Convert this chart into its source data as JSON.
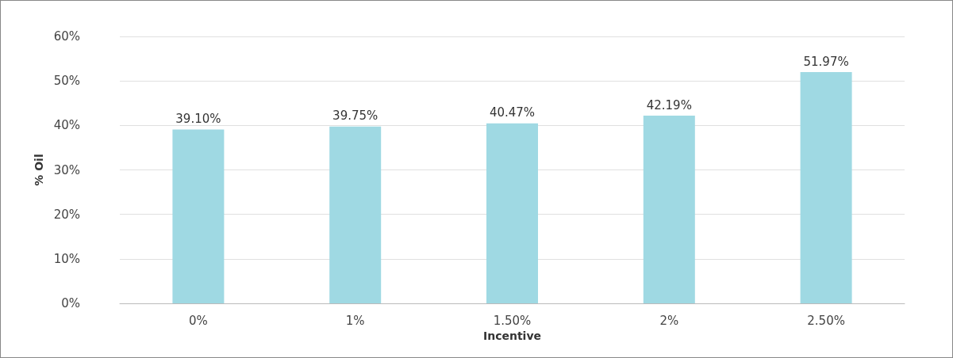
{
  "chart_data": {
    "type": "bar",
    "xlabel": "Incentive",
    "ylabel": "% Oil",
    "categories": [
      "0%",
      "1%",
      "1.50%",
      "2%",
      "2.50%"
    ],
    "values": [
      39.1,
      39.75,
      40.47,
      42.19,
      51.97
    ],
    "value_labels": [
      "39.10%",
      "39.75%",
      "40.47%",
      "42.19%",
      "51.97%"
    ],
    "color": "#9fd9e3",
    "ylim": [
      0,
      60
    ],
    "yticks": [
      {
        "value": 0,
        "label": "0%"
      },
      {
        "value": 10,
        "label": "10%"
      },
      {
        "value": 20,
        "label": "20%"
      },
      {
        "value": 30,
        "label": "30%"
      },
      {
        "value": 40,
        "label": "40%"
      },
      {
        "value": 50,
        "label": "50%"
      },
      {
        "value": 60,
        "label": "60%"
      }
    ],
    "grid": "y"
  }
}
